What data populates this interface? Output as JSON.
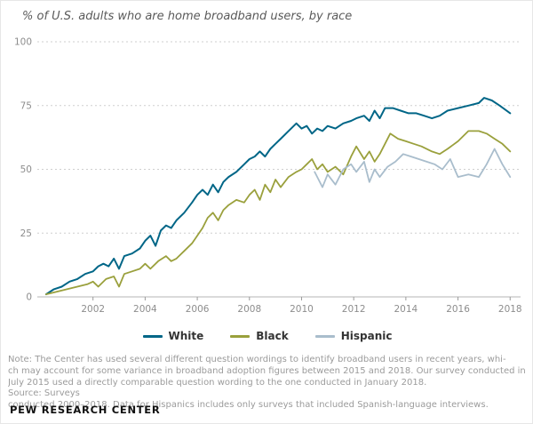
{
  "title": "% of U.S. adults who are home broadband users, by race",
  "footer": "PEW RESEARCH CENTER",
  "note": {
    "lines": [
      "Note: The Center has used several different question wordings to identify broadband users in recent years, whi-",
      "ch may account for some variance in broadband adoption figures between 2015 and 2018. Our survey conducted in",
      "July 2015 used a directly comparable question wording to the one conducted in January 2018.",
      "Source: Surveys",
      "conducted 2000–2018. Data for Hispanics includes only surveys that included Spanish-language interviews."
    ]
  },
  "chart_data": {
    "type": "line",
    "title": "% of U.S. adults who are home broadband users, by race",
    "ylabel": "% of U.S. adults",
    "ylim": [
      0,
      100
    ],
    "x_range": [
      2000,
      2018.4
    ],
    "y_ticks": [
      0,
      25,
      50,
      75,
      100
    ],
    "x_ticks": [
      2002,
      2004,
      2006,
      2008,
      2010,
      2012,
      2014,
      2016,
      2018
    ],
    "grid": "dashed horizontal",
    "legend_position": "bottom",
    "series": [
      {
        "name": "White",
        "color": "#006687",
        "points": [
          [
            2000.2,
            1
          ],
          [
            2000.5,
            3
          ],
          [
            2000.8,
            4
          ],
          [
            2001.1,
            6
          ],
          [
            2001.4,
            7
          ],
          [
            2001.7,
            9
          ],
          [
            2002.0,
            10
          ],
          [
            2002.2,
            12
          ],
          [
            2002.4,
            13
          ],
          [
            2002.6,
            12
          ],
          [
            2002.8,
            15
          ],
          [
            2003.0,
            11
          ],
          [
            2003.2,
            16
          ],
          [
            2003.5,
            17
          ],
          [
            2003.8,
            19
          ],
          [
            2004.0,
            22
          ],
          [
            2004.2,
            24
          ],
          [
            2004.4,
            20
          ],
          [
            2004.6,
            26
          ],
          [
            2004.8,
            28
          ],
          [
            2005.0,
            27
          ],
          [
            2005.2,
            30
          ],
          [
            2005.5,
            33
          ],
          [
            2005.8,
            37
          ],
          [
            2006.0,
            40
          ],
          [
            2006.2,
            42
          ],
          [
            2006.4,
            40
          ],
          [
            2006.6,
            44
          ],
          [
            2006.8,
            41
          ],
          [
            2007.0,
            45
          ],
          [
            2007.2,
            47
          ],
          [
            2007.5,
            49
          ],
          [
            2007.8,
            52
          ],
          [
            2008.0,
            54
          ],
          [
            2008.2,
            55
          ],
          [
            2008.4,
            57
          ],
          [
            2008.6,
            55
          ],
          [
            2008.8,
            58
          ],
          [
            2009.0,
            60
          ],
          [
            2009.2,
            62
          ],
          [
            2009.5,
            65
          ],
          [
            2009.8,
            68
          ],
          [
            2010.0,
            66
          ],
          [
            2010.2,
            67
          ],
          [
            2010.4,
            64
          ],
          [
            2010.6,
            66
          ],
          [
            2010.8,
            65
          ],
          [
            2011.0,
            67
          ],
          [
            2011.3,
            66
          ],
          [
            2011.6,
            68
          ],
          [
            2011.9,
            69
          ],
          [
            2012.1,
            70
          ],
          [
            2012.4,
            71
          ],
          [
            2012.6,
            69
          ],
          [
            2012.8,
            73
          ],
          [
            2013.0,
            70
          ],
          [
            2013.2,
            74
          ],
          [
            2013.5,
            74
          ],
          [
            2013.8,
            73
          ],
          [
            2014.1,
            72
          ],
          [
            2014.4,
            72
          ],
          [
            2014.7,
            71
          ],
          [
            2015.0,
            70
          ],
          [
            2015.3,
            71
          ],
          [
            2015.6,
            73
          ],
          [
            2016.0,
            74
          ],
          [
            2016.4,
            75
          ],
          [
            2016.8,
            76
          ],
          [
            2017.0,
            78
          ],
          [
            2017.3,
            77
          ],
          [
            2017.6,
            75
          ],
          [
            2018.0,
            72
          ]
        ]
      },
      {
        "name": "Black",
        "color": "#9aa03c",
        "points": [
          [
            2000.2,
            1
          ],
          [
            2000.6,
            2
          ],
          [
            2001.0,
            3
          ],
          [
            2001.4,
            4
          ],
          [
            2001.8,
            5
          ],
          [
            2002.0,
            6
          ],
          [
            2002.2,
            4
          ],
          [
            2002.5,
            7
          ],
          [
            2002.8,
            8
          ],
          [
            2003.0,
            4
          ],
          [
            2003.2,
            9
          ],
          [
            2003.5,
            10
          ],
          [
            2003.8,
            11
          ],
          [
            2004.0,
            13
          ],
          [
            2004.2,
            11
          ],
          [
            2004.5,
            14
          ],
          [
            2004.8,
            16
          ],
          [
            2005.0,
            14
          ],
          [
            2005.2,
            15
          ],
          [
            2005.5,
            18
          ],
          [
            2005.8,
            21
          ],
          [
            2006.0,
            24
          ],
          [
            2006.2,
            27
          ],
          [
            2006.4,
            31
          ],
          [
            2006.6,
            33
          ],
          [
            2006.8,
            30
          ],
          [
            2007.0,
            34
          ],
          [
            2007.2,
            36
          ],
          [
            2007.5,
            38
          ],
          [
            2007.8,
            37
          ],
          [
            2008.0,
            40
          ],
          [
            2008.2,
            42
          ],
          [
            2008.4,
            38
          ],
          [
            2008.6,
            44
          ],
          [
            2008.8,
            41
          ],
          [
            2009.0,
            46
          ],
          [
            2009.2,
            43
          ],
          [
            2009.5,
            47
          ],
          [
            2009.8,
            49
          ],
          [
            2010.0,
            50
          ],
          [
            2010.2,
            52
          ],
          [
            2010.4,
            54
          ],
          [
            2010.6,
            50
          ],
          [
            2010.8,
            52
          ],
          [
            2011.0,
            49
          ],
          [
            2011.3,
            51
          ],
          [
            2011.6,
            48
          ],
          [
            2011.9,
            55
          ],
          [
            2012.1,
            59
          ],
          [
            2012.4,
            54
          ],
          [
            2012.6,
            57
          ],
          [
            2012.8,
            53
          ],
          [
            2013.0,
            56
          ],
          [
            2013.2,
            60
          ],
          [
            2013.4,
            64
          ],
          [
            2013.7,
            62
          ],
          [
            2014.0,
            61
          ],
          [
            2014.3,
            60
          ],
          [
            2014.6,
            59
          ],
          [
            2015.0,
            57
          ],
          [
            2015.3,
            56
          ],
          [
            2015.6,
            58
          ],
          [
            2016.0,
            61
          ],
          [
            2016.4,
            65
          ],
          [
            2016.8,
            65
          ],
          [
            2017.1,
            64
          ],
          [
            2017.4,
            62
          ],
          [
            2017.7,
            60
          ],
          [
            2018.0,
            57
          ]
        ]
      },
      {
        "name": "Hispanic",
        "color": "#a9bdcc",
        "points": [
          [
            2010.5,
            49
          ],
          [
            2010.8,
            43
          ],
          [
            2011.0,
            48
          ],
          [
            2011.3,
            44
          ],
          [
            2011.6,
            50
          ],
          [
            2011.9,
            52
          ],
          [
            2012.1,
            49
          ],
          [
            2012.4,
            53
          ],
          [
            2012.6,
            45
          ],
          [
            2012.8,
            50
          ],
          [
            2013.0,
            47
          ],
          [
            2013.3,
            51
          ],
          [
            2013.6,
            53
          ],
          [
            2013.9,
            56
          ],
          [
            2014.2,
            55
          ],
          [
            2014.5,
            54
          ],
          [
            2014.8,
            53
          ],
          [
            2015.1,
            52
          ],
          [
            2015.4,
            50
          ],
          [
            2015.7,
            54
          ],
          [
            2016.0,
            47
          ],
          [
            2016.4,
            48
          ],
          [
            2016.8,
            47
          ],
          [
            2017.1,
            52
          ],
          [
            2017.4,
            58
          ],
          [
            2017.7,
            52
          ],
          [
            2018.0,
            47
          ]
        ]
      }
    ]
  }
}
